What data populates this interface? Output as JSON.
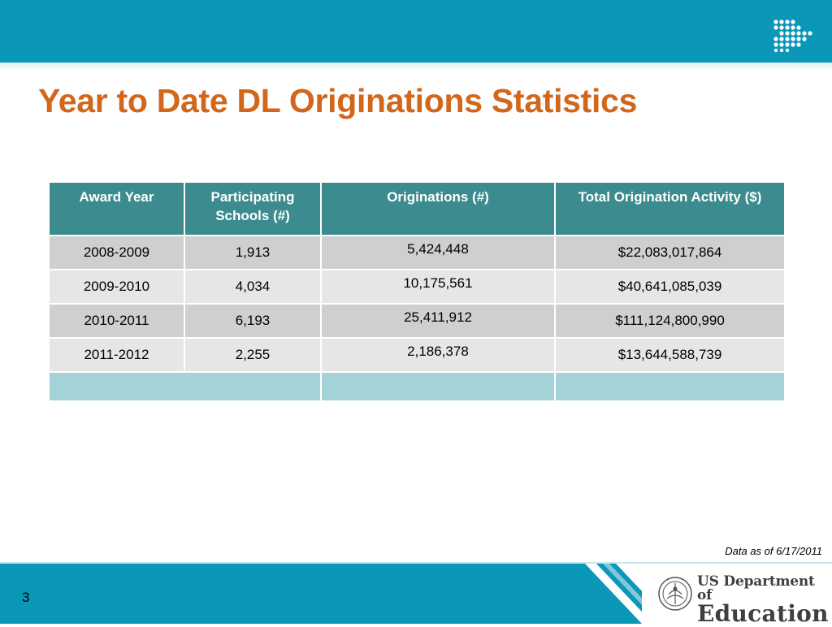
{
  "slide": {
    "title": "Year to Date DL Originations Statistics",
    "page_number": "3",
    "footnote": "Data as of 6/17/2011"
  },
  "table": {
    "headers": [
      "Award Year",
      "Participating Schools (#)",
      "Originations (#)",
      "Total Origination Activity ($)"
    ],
    "rows": [
      [
        "2008-2009",
        "1,913",
        "5,424,448",
        "$22,083,017,864"
      ],
      [
        "2009-2010",
        "4,034",
        "10,175,561",
        "$40,641,085,039"
      ],
      [
        "2010-2011",
        "6,193",
        "25,411,912",
        "$111,124,800,990"
      ],
      [
        "2011-2012",
        "2,255",
        "2,186,378",
        "$13,644,588,739"
      ]
    ]
  },
  "logo": {
    "line1": "US Department of",
    "line2": "Education"
  },
  "colors": {
    "banner": "#0a97b8",
    "title": "#d2661a",
    "table_header": "#3b8b8f",
    "row_dark": "#cfcfcf",
    "row_light": "#e6e6e6",
    "empty_row": "#a3d3d6"
  },
  "icons": [
    "dots-arrow-icon",
    "department-seal-icon"
  ]
}
